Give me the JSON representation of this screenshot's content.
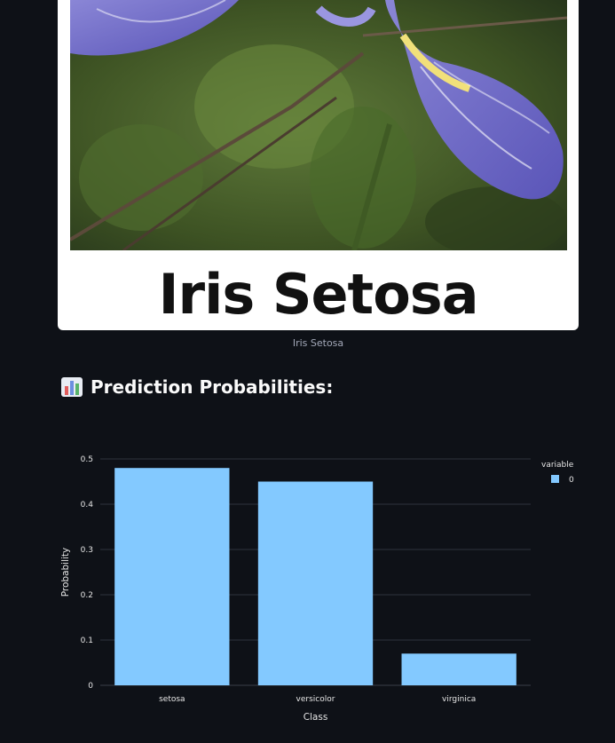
{
  "image": {
    "title_text": "Iris Setosa",
    "caption": "Iris Setosa"
  },
  "section": {
    "heading": "Prediction Probabilities:",
    "heading_icon": "bar-chart-icon"
  },
  "chart_data": {
    "type": "bar",
    "categories": [
      "setosa",
      "versicolor",
      "virginica"
    ],
    "series": [
      {
        "name": "0",
        "values": [
          0.48,
          0.45,
          0.07
        ],
        "color": "#83c9ff"
      }
    ],
    "xlabel": "Class",
    "ylabel": "Probability",
    "ylim": [
      0,
      0.5
    ],
    "yticks": [
      "0",
      "0.1",
      "0.2",
      "0.3",
      "0.4",
      "0.5"
    ],
    "legend_title": "variable",
    "legend_position": "top-right",
    "grid": true
  },
  "colors": {
    "background": "#0e1117",
    "bar": "#83c9ff",
    "grid": "#2f333d",
    "tick_text": "#e6e6e6"
  }
}
